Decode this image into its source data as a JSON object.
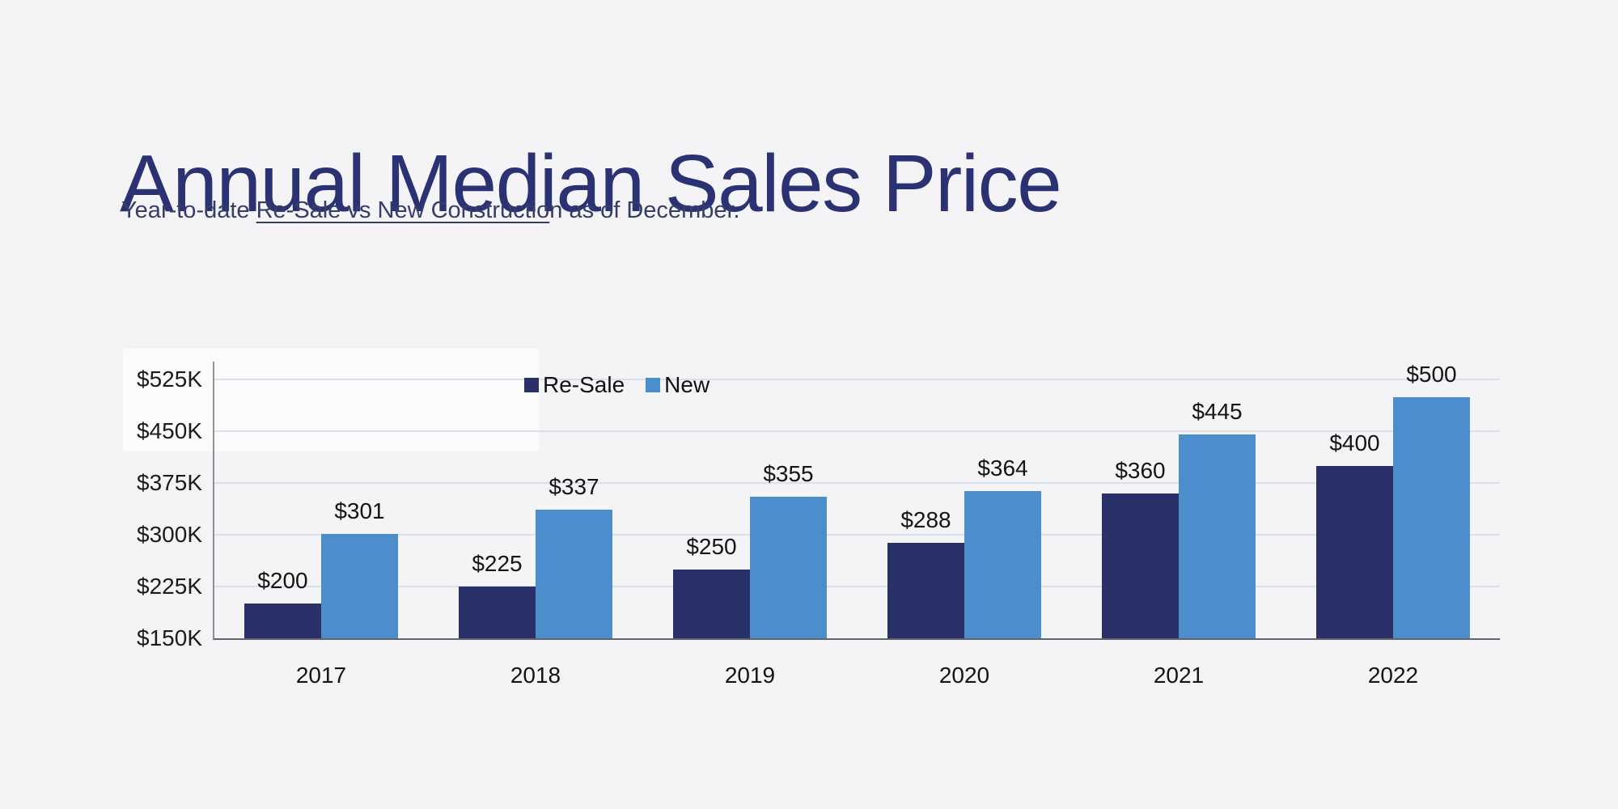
{
  "page": {
    "title": "Annual Median Sales Price",
    "subtitle_prefix": "Year-to-date ",
    "subtitle_link": "Re-Sale vs New Constructio",
    "subtitle_suffix": "n as of December."
  },
  "colors": {
    "background": "#f4f4f6",
    "title_navy": "#2b3273",
    "resale_bar": "#2a3168",
    "new_bar": "#4c8ecb",
    "gridline": "#d8dfee",
    "y_axis_line": "#8f8f97",
    "x_axis_line": "#64646c"
  },
  "chart_data": {
    "type": "bar",
    "title": "Annual Median Sales Price",
    "subtitle": "Year-to-date Re-Sale vs New Construction as of December.",
    "categories": [
      "2017",
      "2018",
      "2019",
      "2020",
      "2021",
      "2022"
    ],
    "series": [
      {
        "key": "resale",
        "name": "Re-Sale",
        "color": "#2a3168",
        "values": [
          200,
          225,
          250,
          288,
          360,
          400
        ],
        "data_labels": [
          "$200",
          "$225",
          "$250",
          "$288",
          "$360",
          "$400"
        ]
      },
      {
        "key": "new",
        "name": "New",
        "color": "#4c8ecb",
        "values": [
          301,
          337,
          355,
          364,
          445,
          500
        ],
        "data_labels": [
          "$301",
          "$337",
          "$355",
          "$364",
          "$445",
          "$500"
        ]
      }
    ],
    "value_unit": "thousands of USD",
    "xlabel": "",
    "ylabel": "",
    "y_ticks": [
      150,
      225,
      300,
      375,
      450,
      525
    ],
    "y_tick_labels": [
      "$150K",
      "$225K",
      "$300K",
      "$375K",
      "$450K",
      "$525K"
    ],
    "ylim": [
      150,
      551
    ],
    "grid": true,
    "legend": {
      "position": "top-center",
      "entries": [
        "Re-Sale",
        "New"
      ]
    }
  }
}
